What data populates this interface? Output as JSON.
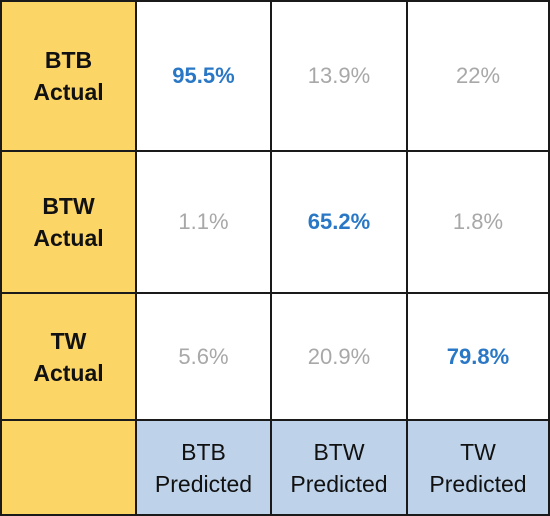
{
  "chart_data": {
    "type": "table",
    "rows": [
      {
        "line1": "BTB",
        "line2": "Actual"
      },
      {
        "line1": "BTW",
        "line2": "Actual"
      },
      {
        "line1": "TW",
        "line2": "Actual"
      }
    ],
    "columns": [
      {
        "line1": "BTB",
        "line2": "Predicted"
      },
      {
        "line1": "BTW",
        "line2": "Predicted"
      },
      {
        "line1": "TW",
        "line2": "Predicted"
      }
    ],
    "values": [
      [
        "95.5%",
        "13.9%",
        "22%"
      ],
      [
        "1.1%",
        "65.2%",
        "1.8%"
      ],
      [
        "5.6%",
        "20.9%",
        "79.8%"
      ]
    ],
    "colors": {
      "row_header_bg": "#fcd567",
      "col_header_bg": "#bed3ea",
      "diagonal_text": "#2a78c5",
      "off_diagonal_text": "#a8a8a8",
      "border": "#1a1a1a"
    }
  }
}
